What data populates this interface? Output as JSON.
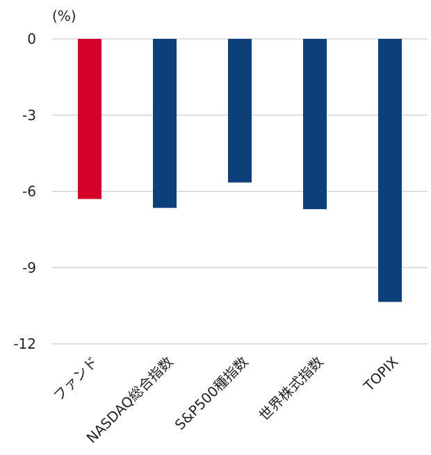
{
  "chart_data": {
    "type": "bar",
    "unit_label": "(%)",
    "categories": [
      "ファンド",
      "NASDAQ総合指数",
      "S&P500種指数",
      "世界株式指数",
      "TOPIX"
    ],
    "values": [
      -6.3,
      -6.65,
      -5.65,
      -6.7,
      -10.35
    ],
    "colors": [
      "#d7002b",
      "#0d3f78",
      "#0d3f78",
      "#0d3f78",
      "#0d3f78"
    ],
    "yticks": [
      0,
      -3,
      -6,
      -9,
      -12
    ],
    "ylim": [
      -12,
      0
    ],
    "grid": true,
    "xlabel": "",
    "ylabel": ""
  }
}
